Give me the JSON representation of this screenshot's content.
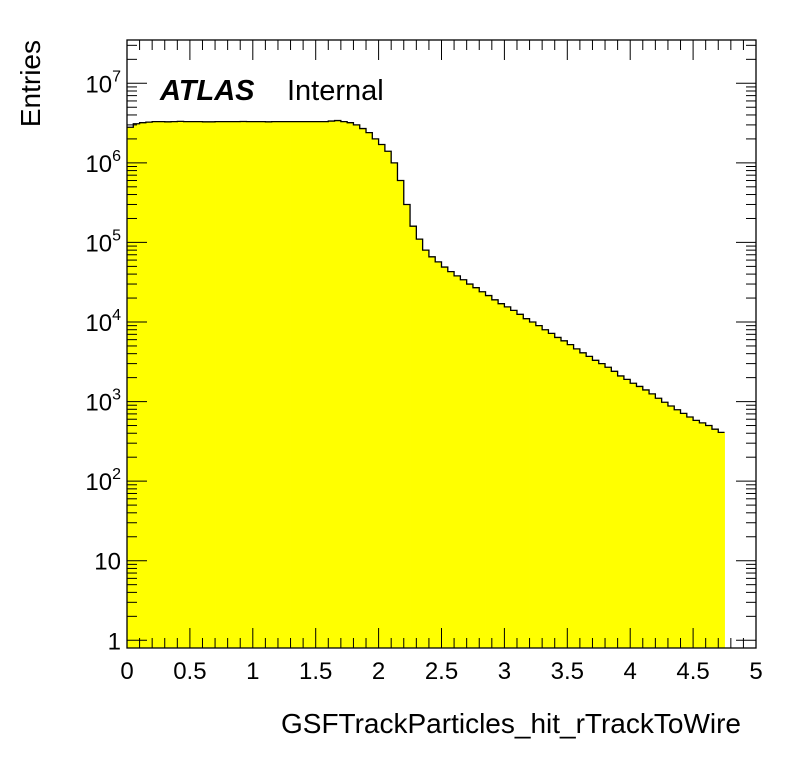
{
  "chart_data": {
    "type": "histogram",
    "xlabel": "GSFTrackParticles_hit_rTrackToWire",
    "ylabel": "Entries",
    "xlim": [
      0,
      5
    ],
    "ylim": [
      0.8,
      35000000
    ],
    "yscale": "log",
    "bin_width": 0.05,
    "fill_color": "#ffff00",
    "line_color": "#000000",
    "x_ticks": [
      "0",
      "0.5",
      "1",
      "1.5",
      "2",
      "2.5",
      "3",
      "3.5",
      "4",
      "4.5",
      "5"
    ],
    "y_ticks": [
      {
        "value": 1,
        "base": "1",
        "exp": ""
      },
      {
        "value": 10,
        "base": "10",
        "exp": ""
      },
      {
        "value": 100,
        "base": "10",
        "exp": "2"
      },
      {
        "value": 1000,
        "base": "10",
        "exp": "3"
      },
      {
        "value": 10000,
        "base": "10",
        "exp": "4"
      },
      {
        "value": 100000,
        "base": "10",
        "exp": "5"
      },
      {
        "value": 1000000,
        "base": "10",
        "exp": "6"
      },
      {
        "value": 10000000,
        "base": "10",
        "exp": "7"
      }
    ],
    "label": {
      "atlas": "ATLAS",
      "status": "Internal"
    },
    "values": [
      2800000,
      3100000,
      3200000,
      3250000,
      3300000,
      3300000,
      3280000,
      3300000,
      3320000,
      3300000,
      3300000,
      3300000,
      3280000,
      3280000,
      3300000,
      3300000,
      3300000,
      3300000,
      3310000,
      3300000,
      3300000,
      3300000,
      3280000,
      3300000,
      3300000,
      3300000,
      3300000,
      3300000,
      3300000,
      3300000,
      3300000,
      3300000,
      3350000,
      3400000,
      3300000,
      3200000,
      3000000,
      2700000,
      2400000,
      2000000,
      1700000,
      1400000,
      1000000,
      600000,
      300000,
      160000,
      110000,
      80000,
      66000,
      57000,
      49000,
      43000,
      38000,
      34000,
      30000,
      27000,
      24000,
      21500,
      19000,
      17000,
      15500,
      14000,
      12500,
      11000,
      10000,
      9000,
      8000,
      7200,
      6400,
      5800,
      5200,
      4600,
      4100,
      3700,
      3300,
      3000,
      2700,
      2400,
      2100,
      1900,
      1700,
      1550,
      1400,
      1250,
      1100,
      980,
      880,
      790,
      710,
      640,
      580,
      540,
      500,
      450,
      410
    ]
  }
}
